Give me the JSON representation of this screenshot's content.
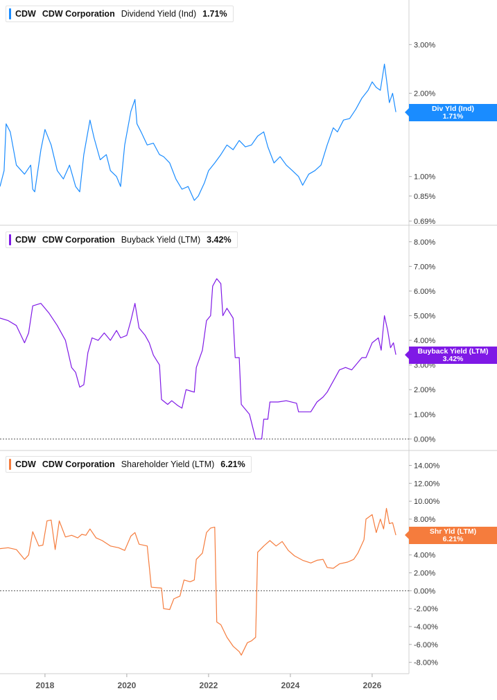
{
  "chart_data": [
    {
      "type": "line",
      "ticker": "CDW",
      "company": "CDW Corporation",
      "metric": "Dividend Yield (Ind)",
      "current_value": "1.71%",
      "end_label_line1": "Div Yld (Ind)",
      "end_label_line2": "1.71%",
      "color": "#1a8cff",
      "scale": "log",
      "ylim": [
        0.69,
        4.2
      ],
      "yticks": [
        0.69,
        0.85,
        1.0,
        2.0,
        3.0
      ],
      "ytick_labels": [
        "0.69%",
        "0.85%",
        "1.00%",
        "2.00%",
        "3.00%"
      ],
      "zero_line": false,
      "series": [
        {
          "points": [
            [
              2016.9,
              0.92
            ],
            [
              2017.0,
              1.05
            ],
            [
              2017.05,
              1.55
            ],
            [
              2017.15,
              1.45
            ],
            [
              2017.3,
              1.1
            ],
            [
              2017.5,
              1.02
            ],
            [
              2017.65,
              1.1
            ],
            [
              2017.7,
              0.9
            ],
            [
              2017.75,
              0.88
            ],
            [
              2017.9,
              1.25
            ],
            [
              2018.0,
              1.48
            ],
            [
              2018.15,
              1.3
            ],
            [
              2018.3,
              1.05
            ],
            [
              2018.45,
              0.98
            ],
            [
              2018.6,
              1.1
            ],
            [
              2018.75,
              0.92
            ],
            [
              2018.85,
              0.88
            ],
            [
              2018.95,
              1.2
            ],
            [
              2019.1,
              1.6
            ],
            [
              2019.2,
              1.38
            ],
            [
              2019.35,
              1.15
            ],
            [
              2019.5,
              1.2
            ],
            [
              2019.6,
              1.05
            ],
            [
              2019.75,
              1.0
            ],
            [
              2019.85,
              0.92
            ],
            [
              2019.95,
              1.3
            ],
            [
              2020.1,
              1.72
            ],
            [
              2020.2,
              1.9
            ],
            [
              2020.25,
              1.55
            ],
            [
              2020.35,
              1.45
            ],
            [
              2020.5,
              1.3
            ],
            [
              2020.65,
              1.32
            ],
            [
              2020.8,
              1.2
            ],
            [
              2020.9,
              1.18
            ],
            [
              2021.05,
              1.12
            ],
            [
              2021.2,
              0.98
            ],
            [
              2021.35,
              0.9
            ],
            [
              2021.5,
              0.92
            ],
            [
              2021.65,
              0.82
            ],
            [
              2021.75,
              0.85
            ],
            [
              2021.9,
              0.95
            ],
            [
              2022.0,
              1.05
            ],
            [
              2022.15,
              1.12
            ],
            [
              2022.3,
              1.2
            ],
            [
              2022.45,
              1.3
            ],
            [
              2022.6,
              1.25
            ],
            [
              2022.75,
              1.35
            ],
            [
              2022.9,
              1.28
            ],
            [
              2023.05,
              1.3
            ],
            [
              2023.2,
              1.4
            ],
            [
              2023.35,
              1.45
            ],
            [
              2023.45,
              1.28
            ],
            [
              2023.6,
              1.12
            ],
            [
              2023.75,
              1.18
            ],
            [
              2023.9,
              1.1
            ],
            [
              2024.05,
              1.05
            ],
            [
              2024.2,
              1.0
            ],
            [
              2024.3,
              0.93
            ],
            [
              2024.45,
              1.02
            ],
            [
              2024.6,
              1.05
            ],
            [
              2024.75,
              1.1
            ],
            [
              2024.9,
              1.3
            ],
            [
              2025.05,
              1.5
            ],
            [
              2025.15,
              1.45
            ],
            [
              2025.3,
              1.6
            ],
            [
              2025.45,
              1.62
            ],
            [
              2025.6,
              1.75
            ],
            [
              2025.75,
              1.92
            ],
            [
              2025.9,
              2.05
            ],
            [
              2026.0,
              2.2
            ],
            [
              2026.1,
              2.1
            ],
            [
              2026.2,
              2.05
            ],
            [
              2026.3,
              2.55
            ],
            [
              2026.35,
              2.25
            ],
            [
              2026.42,
              1.85
            ],
            [
              2026.5,
              2.0
            ],
            [
              2026.58,
              1.71
            ]
          ]
        }
      ]
    },
    {
      "type": "line",
      "ticker": "CDW",
      "company": "CDW Corporation",
      "metric": "Buyback Yield (LTM)",
      "current_value": "3.42%",
      "end_label_line1": "Buyback Yield (LTM)",
      "end_label_line2": "3.42%",
      "color": "#7f19e6",
      "scale": "linear",
      "ylim": [
        -0.3,
        8.5
      ],
      "yticks": [
        0,
        1,
        2,
        3,
        4,
        5,
        6,
        7,
        8
      ],
      "ytick_labels": [
        "0.00%",
        "1.00%",
        "2.00%",
        "3.00%",
        "4.00%",
        "5.00%",
        "6.00%",
        "7.00%",
        "8.00%"
      ],
      "zero_line": true,
      "series": [
        {
          "points": [
            [
              2016.9,
              4.9
            ],
            [
              2017.1,
              4.8
            ],
            [
              2017.3,
              4.6
            ],
            [
              2017.5,
              3.9
            ],
            [
              2017.6,
              4.3
            ],
            [
              2017.7,
              5.4
            ],
            [
              2017.9,
              5.5
            ],
            [
              2018.1,
              5.1
            ],
            [
              2018.3,
              4.6
            ],
            [
              2018.5,
              4.0
            ],
            [
              2018.65,
              2.9
            ],
            [
              2018.75,
              2.7
            ],
            [
              2018.85,
              2.1
            ],
            [
              2018.95,
              2.2
            ],
            [
              2019.05,
              3.5
            ],
            [
              2019.15,
              4.1
            ],
            [
              2019.3,
              4.0
            ],
            [
              2019.45,
              4.3
            ],
            [
              2019.6,
              4.0
            ],
            [
              2019.75,
              4.4
            ],
            [
              2019.85,
              4.1
            ],
            [
              2020.0,
              4.2
            ],
            [
              2020.1,
              4.8
            ],
            [
              2020.2,
              5.5
            ],
            [
              2020.3,
              4.5
            ],
            [
              2020.45,
              4.2
            ],
            [
              2020.55,
              3.9
            ],
            [
              2020.65,
              3.4
            ],
            [
              2020.8,
              3.0
            ],
            [
              2020.85,
              1.6
            ],
            [
              2021.0,
              1.4
            ],
            [
              2021.1,
              1.55
            ],
            [
              2021.25,
              1.35
            ],
            [
              2021.35,
              1.25
            ],
            [
              2021.45,
              2.0
            ],
            [
              2021.55,
              1.95
            ],
            [
              2021.65,
              1.9
            ],
            [
              2021.7,
              2.9
            ],
            [
              2021.85,
              3.6
            ],
            [
              2021.95,
              4.8
            ],
            [
              2022.05,
              5.0
            ],
            [
              2022.1,
              6.2
            ],
            [
              2022.2,
              6.5
            ],
            [
              2022.3,
              6.3
            ],
            [
              2022.35,
              5.0
            ],
            [
              2022.45,
              5.3
            ],
            [
              2022.6,
              4.9
            ],
            [
              2022.65,
              3.3
            ],
            [
              2022.75,
              3.3
            ],
            [
              2022.8,
              1.4
            ],
            [
              2023.0,
              1.0
            ],
            [
              2023.15,
              0.0
            ],
            [
              2023.3,
              0.0
            ],
            [
              2023.35,
              0.8
            ],
            [
              2023.45,
              0.8
            ],
            [
              2023.5,
              1.5
            ],
            [
              2023.7,
              1.5
            ],
            [
              2023.9,
              1.55
            ],
            [
              2024.15,
              1.45
            ],
            [
              2024.2,
              1.1
            ],
            [
              2024.5,
              1.1
            ],
            [
              2024.65,
              1.5
            ],
            [
              2024.8,
              1.7
            ],
            [
              2024.9,
              1.9
            ],
            [
              2025.0,
              2.2
            ],
            [
              2025.1,
              2.5
            ],
            [
              2025.2,
              2.8
            ],
            [
              2025.35,
              2.9
            ],
            [
              2025.5,
              2.8
            ],
            [
              2025.6,
              3.0
            ],
            [
              2025.75,
              3.3
            ],
            [
              2025.85,
              3.3
            ],
            [
              2026.0,
              3.9
            ],
            [
              2026.15,
              4.1
            ],
            [
              2026.22,
              3.6
            ],
            [
              2026.3,
              5.0
            ],
            [
              2026.38,
              4.4
            ],
            [
              2026.45,
              3.7
            ],
            [
              2026.52,
              3.9
            ],
            [
              2026.58,
              3.42
            ]
          ]
        }
      ]
    },
    {
      "type": "line",
      "ticker": "CDW",
      "company": "CDW Corporation",
      "metric": "Shareholder Yield (LTM)",
      "current_value": "6.21%",
      "end_label_line1": "Shr Yld (LTM)",
      "end_label_line2": "6.21%",
      "color": "#f57c3d",
      "scale": "linear",
      "ylim": [
        -8.8,
        15.2
      ],
      "yticks": [
        -8,
        -6,
        -4,
        -2,
        0,
        2,
        4,
        6,
        8,
        10,
        12,
        14
      ],
      "ytick_labels": [
        "-8.00%",
        "-6.00%",
        "-4.00%",
        "-2.00%",
        "0.00%",
        "2.00%",
        "4.00%",
        "6.00%",
        "8.00%",
        "10.00%",
        "12.00%",
        "14.00%"
      ],
      "zero_line": true,
      "series": [
        {
          "points": [
            [
              2016.9,
              4.7
            ],
            [
              2017.1,
              4.8
            ],
            [
              2017.3,
              4.6
            ],
            [
              2017.5,
              3.5
            ],
            [
              2017.6,
              4.0
            ],
            [
              2017.7,
              6.6
            ],
            [
              2017.85,
              5.0
            ],
            [
              2017.95,
              5.1
            ],
            [
              2018.05,
              7.8
            ],
            [
              2018.15,
              7.9
            ],
            [
              2018.25,
              4.6
            ],
            [
              2018.35,
              7.8
            ],
            [
              2018.5,
              6.0
            ],
            [
              2018.65,
              6.2
            ],
            [
              2018.8,
              5.9
            ],
            [
              2018.9,
              6.3
            ],
            [
              2019.0,
              6.2
            ],
            [
              2019.1,
              6.9
            ],
            [
              2019.25,
              5.9
            ],
            [
              2019.4,
              5.6
            ],
            [
              2019.6,
              5.0
            ],
            [
              2019.8,
              4.8
            ],
            [
              2019.95,
              4.5
            ],
            [
              2020.1,
              6.1
            ],
            [
              2020.2,
              6.5
            ],
            [
              2020.3,
              5.2
            ],
            [
              2020.5,
              5.0
            ],
            [
              2020.6,
              0.4
            ],
            [
              2020.85,
              0.3
            ],
            [
              2020.9,
              -2.0
            ],
            [
              2021.05,
              -2.1
            ],
            [
              2021.15,
              -0.9
            ],
            [
              2021.3,
              -0.6
            ],
            [
              2021.4,
              1.2
            ],
            [
              2021.55,
              1.0
            ],
            [
              2021.65,
              1.2
            ],
            [
              2021.7,
              3.5
            ],
            [
              2021.85,
              4.2
            ],
            [
              2021.95,
              6.5
            ],
            [
              2022.05,
              7.0
            ],
            [
              2022.15,
              7.1
            ],
            [
              2022.2,
              -3.5
            ],
            [
              2022.3,
              -3.8
            ],
            [
              2022.45,
              -5.2
            ],
            [
              2022.6,
              -6.2
            ],
            [
              2022.75,
              -6.8
            ],
            [
              2022.8,
              -7.2
            ],
            [
              2022.95,
              -5.8
            ],
            [
              2023.05,
              -5.6
            ],
            [
              2023.15,
              -5.2
            ],
            [
              2023.2,
              4.3
            ],
            [
              2023.35,
              5.0
            ],
            [
              2023.5,
              5.6
            ],
            [
              2023.65,
              5.0
            ],
            [
              2023.8,
              5.5
            ],
            [
              2023.95,
              4.5
            ],
            [
              2024.1,
              3.9
            ],
            [
              2024.3,
              3.4
            ],
            [
              2024.5,
              3.1
            ],
            [
              2024.65,
              3.4
            ],
            [
              2024.8,
              3.5
            ],
            [
              2024.9,
              2.6
            ],
            [
              2025.05,
              2.5
            ],
            [
              2025.2,
              3.0
            ],
            [
              2025.4,
              3.2
            ],
            [
              2025.55,
              3.5
            ],
            [
              2025.65,
              4.2
            ],
            [
              2025.8,
              5.7
            ],
            [
              2025.85,
              8.0
            ],
            [
              2026.0,
              8.5
            ],
            [
              2026.1,
              6.5
            ],
            [
              2026.2,
              8.0
            ],
            [
              2026.28,
              6.9
            ],
            [
              2026.35,
              9.2
            ],
            [
              2026.42,
              7.5
            ],
            [
              2026.5,
              7.6
            ],
            [
              2026.58,
              6.21
            ]
          ]
        }
      ]
    }
  ],
  "x_axis": {
    "xlim": [
      2016.9,
      2026.9
    ],
    "ticks": [
      2018,
      2020,
      2022,
      2024,
      2026
    ],
    "tick_labels": [
      "2018",
      "2020",
      "2022",
      "2024",
      "2026"
    ]
  }
}
